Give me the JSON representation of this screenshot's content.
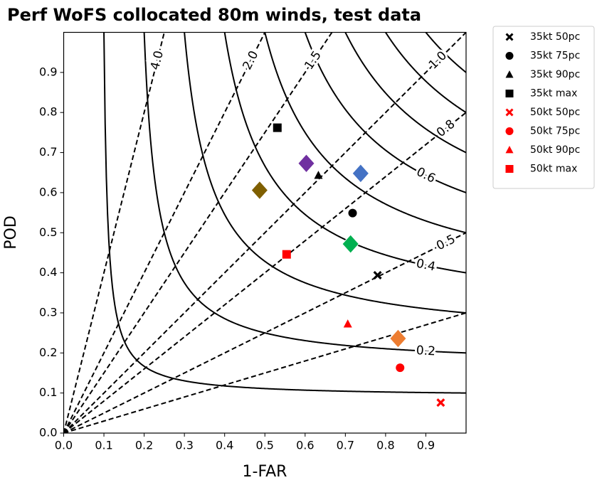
{
  "chart_data": {
    "type": "performance",
    "title": "Perf WoFS collocated 80m winds, test data",
    "xlabel": "1-FAR",
    "ylabel": "POD",
    "xlim": [
      0,
      1
    ],
    "ylim": [
      0,
      1
    ],
    "xticks": [
      {
        "value": 0,
        "label": "0.0"
      },
      0.1,
      0.2,
      0.3,
      0.4,
      0.5,
      0.6,
      0.7,
      0.8,
      0.9
    ],
    "yticks": [
      {
        "value": 0,
        "label": "0.0"
      },
      0.1,
      0.2,
      0.3,
      0.4,
      0.5,
      0.6,
      0.7,
      0.8,
      0.9
    ],
    "csi_levels": [
      0.1,
      0.2,
      0.3,
      0.4,
      0.5,
      0.6,
      0.7,
      0.8,
      0.9
    ],
    "csi_labels": [
      0.2,
      0.4,
      0.6
    ],
    "bias_levels": [
      0.3,
      0.5,
      0.8,
      1,
      1.5,
      2,
      4
    ],
    "bias_labels": [
      {
        "value": 4,
        "label": "4.0"
      },
      {
        "value": 2,
        "label": "2.0"
      },
      1.5,
      {
        "value": 1,
        "label": "1.0"
      },
      0.8,
      0.5
    ],
    "legend": "outside upper right",
    "series": [
      {
        "name": "35kt 50pc",
        "color": "#000000",
        "marker": "X",
        "x": [
          0.78
        ],
        "values": [
          0.394
        ]
      },
      {
        "name": "35kt 75pc",
        "color": "#000000",
        "marker": "o",
        "x": [
          0.718
        ],
        "values": [
          0.549
        ]
      },
      {
        "name": "35kt 90pc",
        "color": "#000000",
        "marker": "^",
        "x": [
          0.633
        ],
        "values": [
          0.643
        ]
      },
      {
        "name": "35kt max",
        "color": "#000000",
        "marker": "s",
        "x": [
          0.531
        ],
        "values": [
          0.762
        ]
      },
      {
        "name": "50kt 50pc",
        "color": "#ff0000",
        "marker": "X",
        "x": [
          0.937
        ],
        "values": [
          0.076
        ]
      },
      {
        "name": "50kt 75pc",
        "color": "#ff0000",
        "marker": "o",
        "x": [
          0.836
        ],
        "values": [
          0.163
        ]
      },
      {
        "name": "50kt 90pc",
        "color": "#ff0000",
        "marker": "^",
        "x": [
          0.706
        ],
        "values": [
          0.272
        ]
      },
      {
        "name": "50kt max",
        "color": "#ff0000",
        "marker": "s",
        "x": [
          0.554
        ],
        "values": [
          0.446
        ]
      },
      {
        "color": "#7f5f00",
        "marker": "D",
        "x": [
          0.487
        ],
        "values": [
          0.606
        ]
      },
      {
        "color": "#7030a0",
        "marker": "D",
        "x": [
          0.603
        ],
        "values": [
          0.673
        ]
      },
      {
        "color": "#4472c4",
        "marker": "D",
        "x": [
          0.738
        ],
        "values": [
          0.648
        ]
      },
      {
        "color": "#00b050",
        "marker": "D",
        "x": [
          0.713
        ],
        "values": [
          0.472
        ]
      },
      {
        "color": "#ed7d31",
        "marker": "D",
        "x": [
          0.831
        ],
        "values": [
          0.236
        ]
      }
    ]
  }
}
